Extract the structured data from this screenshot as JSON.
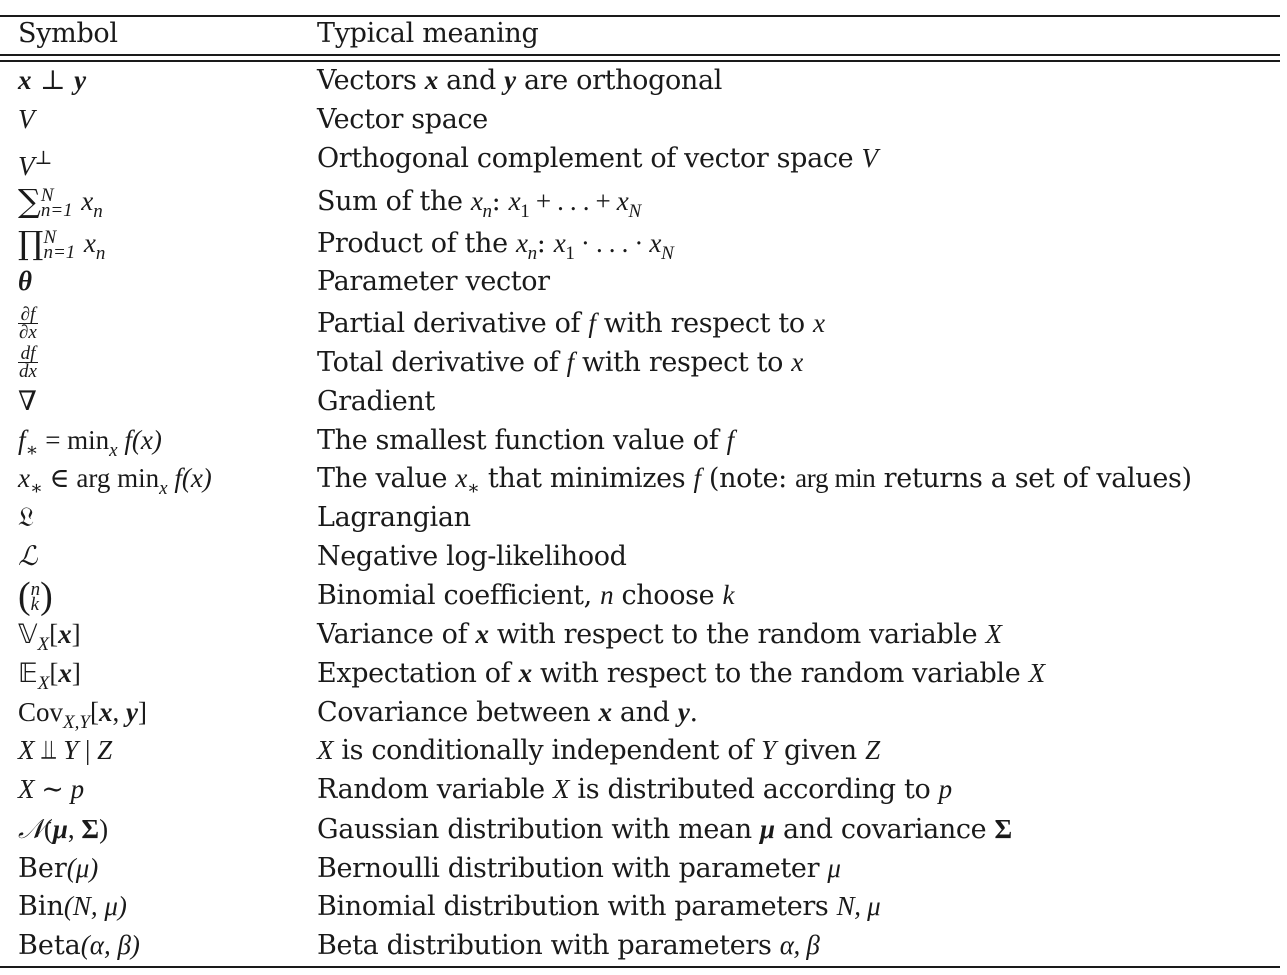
{
  "header": {
    "symbol": "Symbol",
    "meaning": "Typical meaning"
  },
  "rows": [
    {
      "sym": {
        "x": "x",
        "perp": "⊥",
        "y": "y"
      },
      "mean": {
        "t1": "Vectors ",
        "x": "x",
        "t2": " and ",
        "y": "y",
        "t3": " are orthogonal"
      }
    },
    {
      "sym": {
        "v": "V"
      },
      "mean": {
        "t1": "Vector space"
      }
    },
    {
      "sym": {
        "v": "V",
        "sup": "⊥"
      },
      "mean": {
        "t1": "Orthogonal complement of vector space ",
        "v": "V"
      }
    },
    {
      "sym": {
        "op": "∑",
        "upper": "N",
        "lower": "n=1",
        "x": "x",
        "sub": "n"
      },
      "mean": {
        "t1": "Sum of the ",
        "x": "x",
        "sub": "n",
        "t2": ": ",
        "e1": "x",
        "s1": "1",
        "t3": " + . . . + ",
        "e2": "x",
        "s2": "N"
      }
    },
    {
      "sym": {
        "op": "∏",
        "upper": "N",
        "lower": "n=1",
        "x": "x",
        "sub": "n"
      },
      "mean": {
        "t1": "Product of the ",
        "x": "x",
        "sub": "n",
        "t2": ": ",
        "e1": "x",
        "s1": "1",
        "t3": " · . . . · ",
        "e2": "x",
        "s2": "N"
      }
    },
    {
      "sym": {
        "theta": "θ"
      },
      "mean": {
        "t1": "Parameter vector"
      }
    },
    {
      "sym": {
        "num": "∂f",
        "den": "∂x"
      },
      "mean": {
        "t1": "Partial derivative of ",
        "f": "f",
        "t2": " with respect to ",
        "x": "x"
      }
    },
    {
      "sym": {
        "num": "df",
        "den": "dx"
      },
      "mean": {
        "t1": "Total derivative of ",
        "f": "f",
        "t2": " with respect to ",
        "x": "x"
      }
    },
    {
      "sym": {
        "nabla": "∇"
      },
      "mean": {
        "t1": "Gradient"
      }
    },
    {
      "sym": {
        "f": "f",
        "sub": "∗",
        "eq": " = min",
        "msub": "x",
        "rest": " f(x)"
      },
      "mean": {
        "t1": "The smallest function value of ",
        "f": "f"
      }
    },
    {
      "sym": {
        "x": "x",
        "sub": "∗",
        "in": " ∈ arg min",
        "msub": "x",
        "rest": " f(x)"
      },
      "mean": {
        "t1": "The value ",
        "x": "x",
        "sub": "∗",
        "t2": " that minimizes ",
        "f": "f",
        "t3": " (note: ",
        "argmin": "arg min",
        "t4": " returns a set of values)"
      }
    },
    {
      "sym": {
        "lag": "𝔏"
      },
      "mean": {
        "t1": "Lagrangian"
      }
    },
    {
      "sym": {
        "nll": "ℒ"
      },
      "mean": {
        "t1": "Negative log-likelihood"
      }
    },
    {
      "sym": {
        "lp": "(",
        "n": "n",
        "k": "k",
        "rp": ")"
      },
      "mean": {
        "t1": "Binomial coefficient, ",
        "n": "n",
        "t2": " choose ",
        "k": "k"
      }
    },
    {
      "sym": {
        "op": "𝕍",
        "sub": "X",
        "lb": "[",
        "x": "x",
        "rb": "]"
      },
      "mean": {
        "t1": "Variance of ",
        "x": "x",
        "t2": " with respect to the random variable ",
        "X": "X"
      }
    },
    {
      "sym": {
        "op": "𝔼",
        "sub": "X",
        "lb": "[",
        "x": "x",
        "rb": "]"
      },
      "mean": {
        "t1": "Expectation of ",
        "x": "x",
        "t2": " with respect to the random variable ",
        "X": "X"
      }
    },
    {
      "sym": {
        "op": "Cov",
        "sub": "X,Y",
        "lb": "[",
        "x": "x",
        "comma": ", ",
        "y": "y",
        "rb": "]"
      },
      "mean": {
        "t1": "Covariance between ",
        "x": "x",
        "t2": " and ",
        "y": "y",
        "t3": "."
      }
    },
    {
      "sym": {
        "a": "X",
        "indep": " ⫫ ",
        "b": "Y",
        "bar": " | ",
        "c": "Z"
      },
      "mean": {
        "X": "X",
        "t1": " is conditionally independent of ",
        "Y": "Y",
        "t2": " given ",
        "Z": "Z"
      }
    },
    {
      "sym": {
        "a": "X",
        "sim": " ∼ ",
        "p": "p"
      },
      "mean": {
        "t1": "Random variable ",
        "X": "X",
        "t2": " is distributed according to ",
        "p": "p"
      }
    },
    {
      "sym": {
        "N": "𝒩",
        "lp": "(",
        "mu": "μ",
        "comma": ", ",
        "sigma": "Σ",
        "rp": ")"
      },
      "mean": {
        "t1": "Gaussian distribution with mean ",
        "mu": "μ",
        "t2": " and covariance ",
        "sigma": "Σ"
      }
    },
    {
      "sym": {
        "name": "Ber",
        "arg": "(μ)"
      },
      "mean": {
        "t1": "Bernoulli distribution with parameter ",
        "mu": "μ"
      }
    },
    {
      "sym": {
        "name": "Bin",
        "arg": "(N, μ)"
      },
      "mean": {
        "t1": "Binomial distribution with parameters ",
        "params": "N, μ"
      }
    },
    {
      "sym": {
        "name": "Beta",
        "arg": "(α, β)"
      },
      "mean": {
        "t1": "Beta distribution with parameters ",
        "params": "α, β"
      }
    }
  ]
}
